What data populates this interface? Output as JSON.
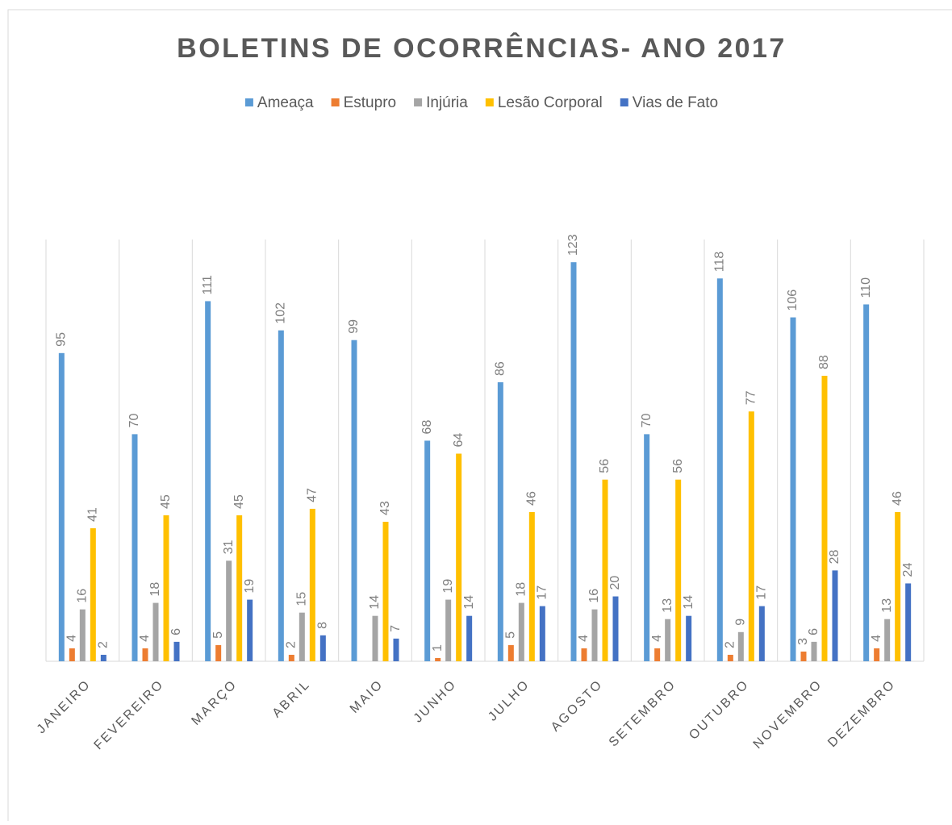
{
  "chart_data": {
    "type": "bar",
    "title": "BOLETINS DE OCORRÊNCIAS- ANO 2017",
    "categories": [
      "JANEIRO",
      "FEVEREIRO",
      "MARÇO",
      "ABRIL",
      "MAIO",
      "JUNHO",
      "JULHO",
      "AGOSTO",
      "SETEMBRO",
      "OUTUBRO",
      "NOVEMBRO",
      "DEZEMBRO"
    ],
    "series": [
      {
        "name": "Ameaça",
        "color": "#5b9bd5",
        "values": [
          95,
          70,
          111,
          102,
          99,
          68,
          86,
          123,
          70,
          118,
          106,
          110
        ]
      },
      {
        "name": "Estupro",
        "color": "#ed7d31",
        "values": [
          4,
          4,
          5,
          2,
          null,
          1,
          5,
          4,
          4,
          2,
          3,
          4
        ]
      },
      {
        "name": "Injúria",
        "color": "#a5a5a5",
        "values": [
          16,
          18,
          31,
          15,
          14,
          19,
          18,
          16,
          13,
          9,
          6,
          13
        ]
      },
      {
        "name": "Lesão Corporal",
        "color": "#ffc000",
        "values": [
          41,
          45,
          45,
          47,
          43,
          64,
          46,
          56,
          56,
          77,
          88,
          46
        ]
      },
      {
        "name": "Vias de Fato",
        "color": "#4472c4",
        "values": [
          2,
          6,
          19,
          8,
          7,
          14,
          17,
          20,
          14,
          17,
          28,
          24
        ]
      }
    ],
    "ylim": [
      0,
      130
    ],
    "legend": "top"
  }
}
